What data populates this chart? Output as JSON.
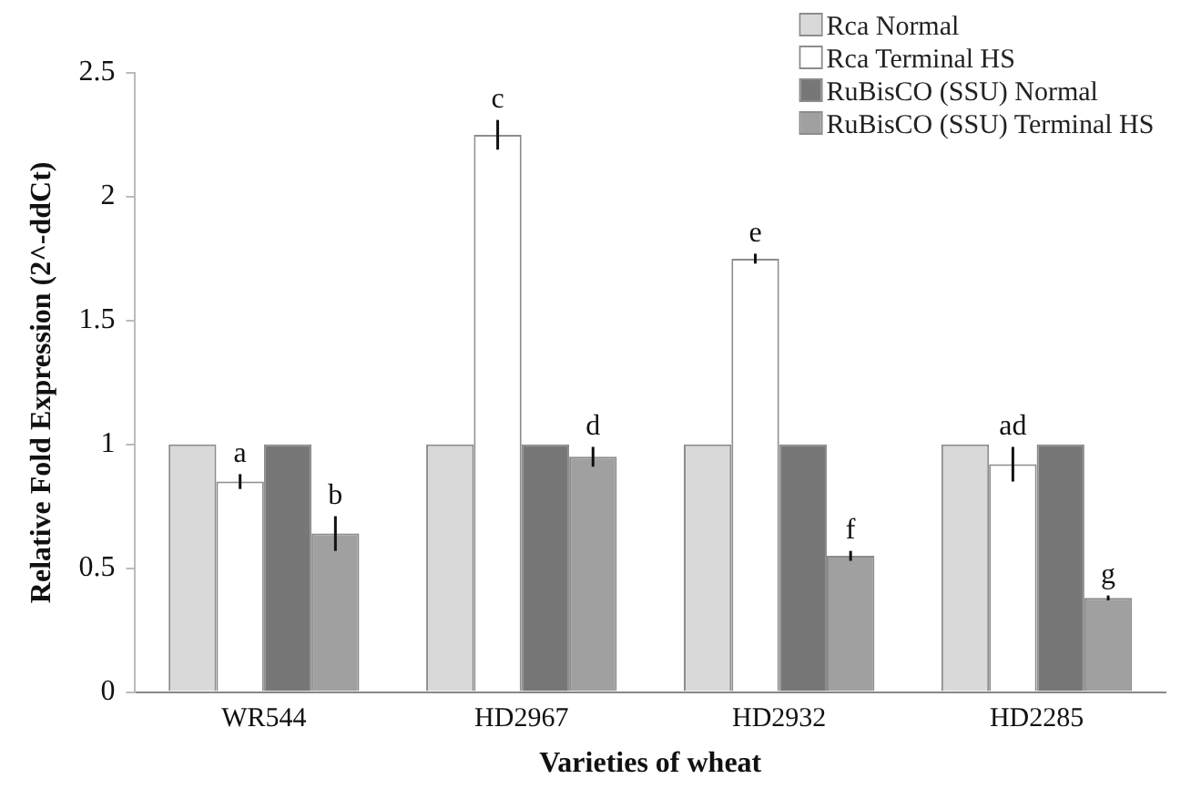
{
  "chart_data": {
    "type": "bar",
    "xlabel": "Varieties of wheat",
    "ylabel": "Relative Fold Expression (2^-ddCt)",
    "categories": [
      "WR544",
      "HD2967",
      "HD2932",
      "HD2285"
    ],
    "series": [
      {
        "name": "Rca Normal",
        "color": "#d9d9d9",
        "values": [
          1,
          1,
          1,
          1
        ]
      },
      {
        "name": "Rca Terminal HS",
        "color": "#ffffff",
        "values": [
          0.85,
          2.25,
          1.75,
          0.92
        ],
        "errors": [
          0.03,
          0.06,
          0.02,
          0.07
        ]
      },
      {
        "name": "RuBisCO (SSU) Normal",
        "color": "#777777",
        "values": [
          1,
          1,
          1,
          1
        ]
      },
      {
        "name": "RuBisCO (SSU) Terminal HS",
        "color": "#a0a0a0",
        "values": [
          0.64,
          0.95,
          0.55,
          0.38
        ],
        "errors": [
          0.07,
          0.04,
          0.02,
          0.01
        ]
      }
    ],
    "ylim": [
      0,
      2.5
    ],
    "yticks": [
      0,
      0.5,
      1,
      1.5,
      2,
      2.5
    ],
    "grid": false,
    "legend": "top right",
    "annotations": [
      {
        "text": "a",
        "x": "WR544",
        "y": 0.85
      },
      {
        "text": "b",
        "x": "WR544",
        "y": 0.64
      },
      {
        "text": "c",
        "x": "HD2967",
        "y": 2.25
      },
      {
        "text": "d",
        "x": "HD2967",
        "y": 0.95
      },
      {
        "text": "e",
        "x": "HD2932",
        "y": 1.75
      },
      {
        "text": "f",
        "x": "HD2932",
        "y": 0.55
      },
      {
        "text": "ad",
        "x": "HD2285",
        "y": 0.92
      },
      {
        "text": "g",
        "x": "HD2285",
        "y": 0.38
      }
    ]
  }
}
